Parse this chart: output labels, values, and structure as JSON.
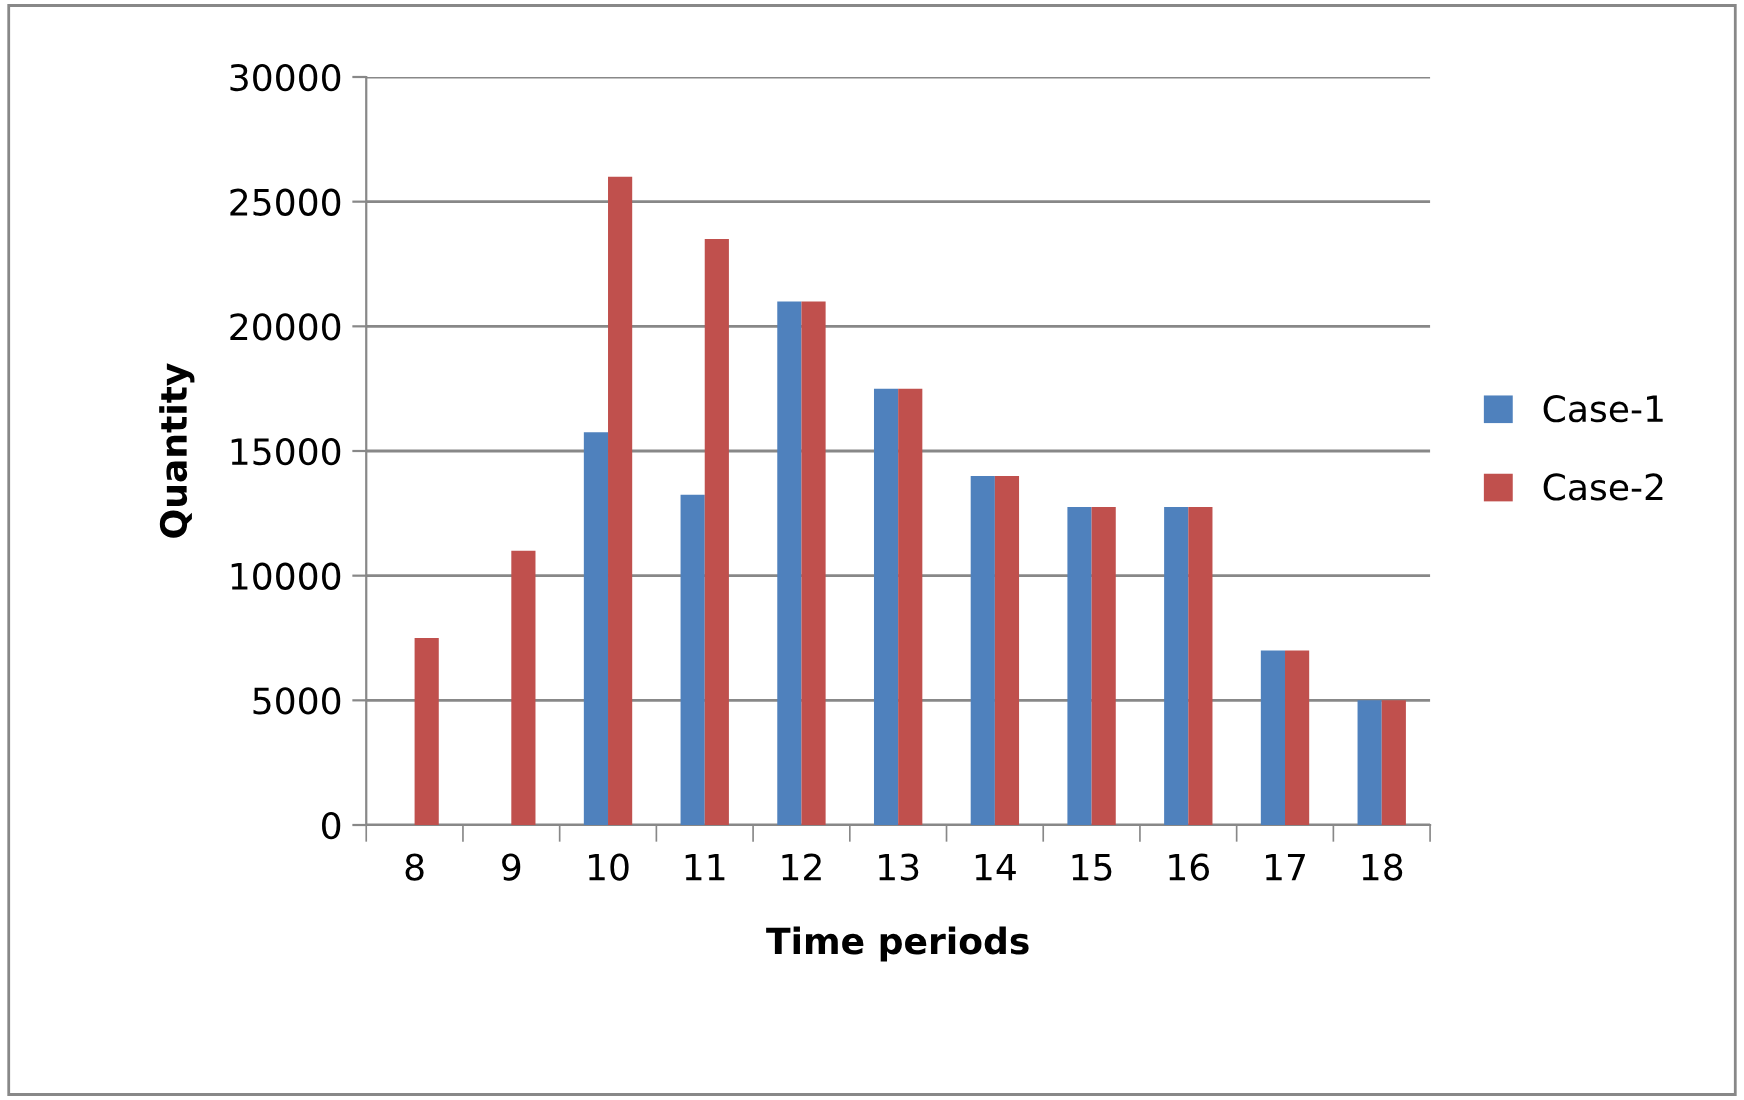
{
  "chart_data": {
    "type": "bar",
    "xlabel": "Time periods",
    "ylabel": "Quantity",
    "categories": [
      "8",
      "9",
      "10",
      "11",
      "12",
      "13",
      "14",
      "15",
      "16",
      "17",
      "18"
    ],
    "series": [
      {
        "name": "Case-1",
        "color": "#4f81bd",
        "values": [
          0,
          0,
          15750,
          13250,
          21000,
          17500,
          14000,
          12750,
          12750,
          7000,
          5000
        ]
      },
      {
        "name": "Case-2",
        "color": "#c0504d",
        "values": [
          7500,
          11000,
          26000,
          23500,
          21000,
          17500,
          14000,
          12750,
          12750,
          7000,
          5000
        ]
      }
    ],
    "ylim": [
      0,
      30000
    ],
    "yticks": [
      0,
      5000,
      10000,
      15000,
      20000,
      25000,
      30000
    ],
    "grid": "y",
    "legend": "right"
  }
}
